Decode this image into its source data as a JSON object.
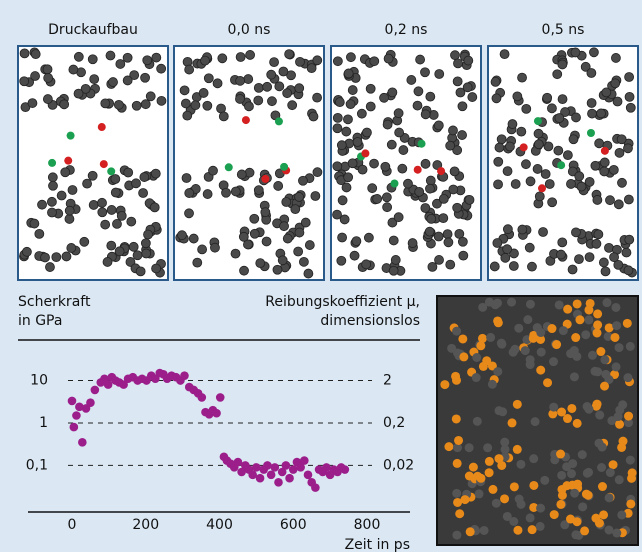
{
  "panels": [
    "Druckaufbau",
    "0,0 ns",
    "0,2 ns",
    "0,5 ns"
  ],
  "chart_data": {
    "type": "scatter",
    "ylabel": [
      "Scherkraft",
      "in GPa"
    ],
    "y2label": [
      "Reibungskoeffizient μ,",
      "dimensionslos"
    ],
    "xlabel": "Zeit in ps",
    "x": [
      0,
      5,
      12,
      20,
      28,
      38,
      50,
      62,
      78,
      88,
      98,
      108,
      118,
      128,
      140,
      152,
      165,
      178,
      190,
      202,
      215,
      226,
      238,
      248,
      258,
      270,
      282,
      294,
      305,
      318,
      330,
      342,
      352,
      362,
      372,
      382,
      392,
      402,
      412,
      420,
      430,
      440,
      450,
      460,
      470,
      480,
      490,
      500,
      510,
      520,
      530,
      540,
      550,
      560,
      570,
      580,
      590,
      600,
      610,
      620,
      630,
      640,
      650,
      660,
      670,
      680,
      690,
      700,
      710,
      720,
      730,
      740
    ],
    "values": [
      3.3,
      0.8,
      1.5,
      2.4,
      0.35,
      2.2,
      3,
      6,
      9,
      11,
      8,
      12,
      10,
      9,
      8,
      11,
      12,
      10,
      11,
      10,
      13,
      11,
      15,
      14,
      11,
      13,
      12,
      10,
      13,
      7,
      6,
      5,
      4,
      1.8,
      1.6,
      2,
      1.7,
      4,
      0.16,
      0.13,
      0.11,
      0.09,
      0.12,
      0.07,
      0.1,
      0.08,
      0.06,
      0.09,
      0.05,
      0.08,
      0.1,
      0.06,
      0.09,
      0.04,
      0.07,
      0.1,
      0.05,
      0.08,
      0.12,
      0.09,
      0.13,
      0.06,
      0.04,
      0.03,
      0.08,
      0.07,
      0.09,
      0.06,
      0.08,
      0.07,
      0.09,
      0.08
    ],
    "color": "#9b1e8a",
    "log_scale": true,
    "grid": true,
    "xlim": [
      -120,
      920
    ],
    "xticks": [
      0,
      200,
      400,
      600,
      800
    ],
    "ylim": [
      0.008,
      90
    ],
    "yticks": [
      {
        "value": 0.1,
        "label": "0,1"
      },
      1,
      10
    ],
    "y2lim": [
      0.0016,
      18
    ],
    "y2ticks": [
      {
        "value": 0.02,
        "label": "0,02"
      },
      {
        "value": 0.2,
        "label": "0,2"
      },
      2
    ]
  }
}
